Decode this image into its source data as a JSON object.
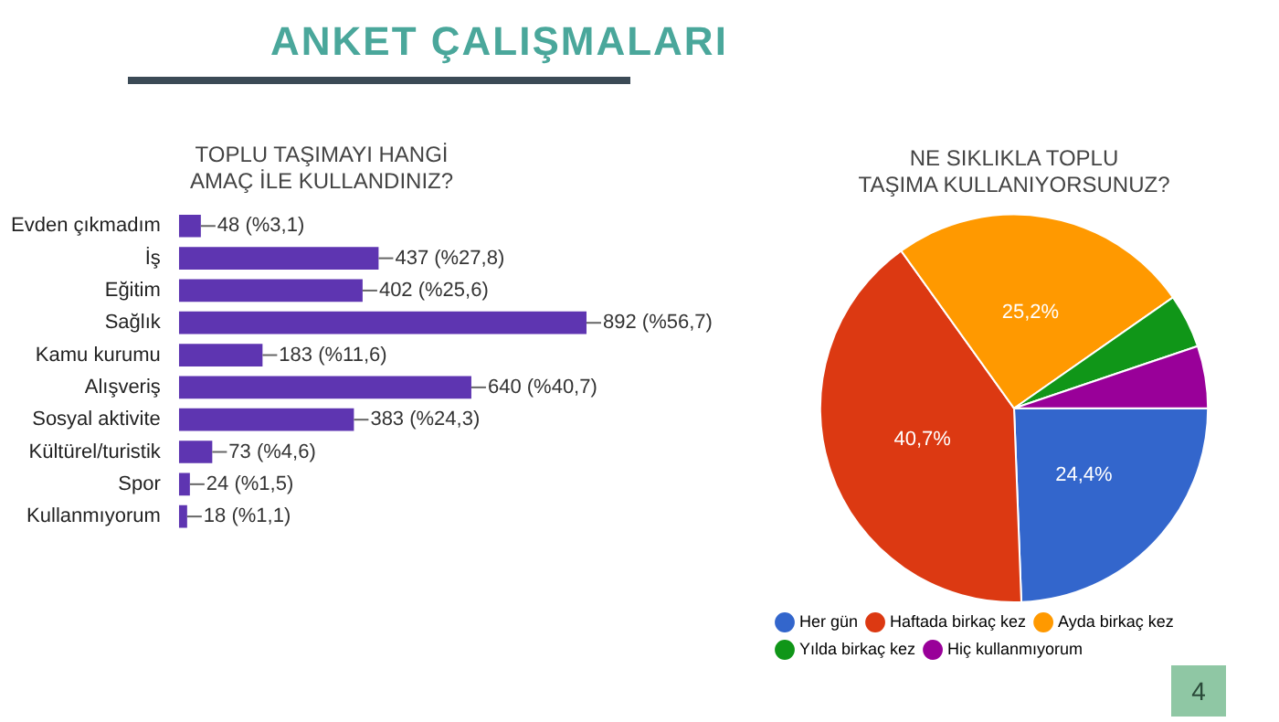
{
  "chart_data": [
    {
      "type": "bar",
      "orientation": "horizontal",
      "title": "TOPLU TAŞIMAYI HANGİ AMAÇ İLE KULLANDINIZ?",
      "categories": [
        "Evden çıkmadım",
        "İş",
        "Eğitim",
        "Sağlık",
        "Kamu kurumu",
        "Alışveriş",
        "Sosyal aktivite",
        "Kültürel/turistik",
        "Spor",
        "Kullanmıyorum"
      ],
      "values": [
        48,
        437,
        402,
        892,
        183,
        640,
        383,
        73,
        24,
        18
      ],
      "value_labels": [
        "48 (%3,1)",
        "437 (%27,8)",
        "402 (%25,6)",
        "892 (%56,7)",
        "183 (%11,6)",
        "640 (%40,7)",
        "383 (%24,3)",
        "73 (%4,6)",
        "24 (%1,5)",
        "18 (%1,1)"
      ],
      "color": "#5e35b1",
      "legend": false,
      "annotations": [
        "ANKET ÇALIŞMALARI",
        "4"
      ]
    },
    {
      "type": "pie",
      "title": "NE SIKLIKLA TOPLU TAŞIMA KULLANIYORSUNUZ?",
      "categories": [
        "Her gün",
        "Haftada birkaç kez",
        "Ayda birkaç kez",
        "Yılda birkaç kez",
        "Hiç kullanmıyorum"
      ],
      "values": [
        24.4,
        40.7,
        25.2,
        4.5,
        5.2
      ],
      "value_labels": [
        "24,4%",
        "40,7%",
        "25,2%",
        null,
        null
      ],
      "colors": [
        "#3366cc",
        "#dc3912",
        "#ff9900",
        "#109618",
        "#990099"
      ],
      "legend": "bottom"
    }
  ]
}
